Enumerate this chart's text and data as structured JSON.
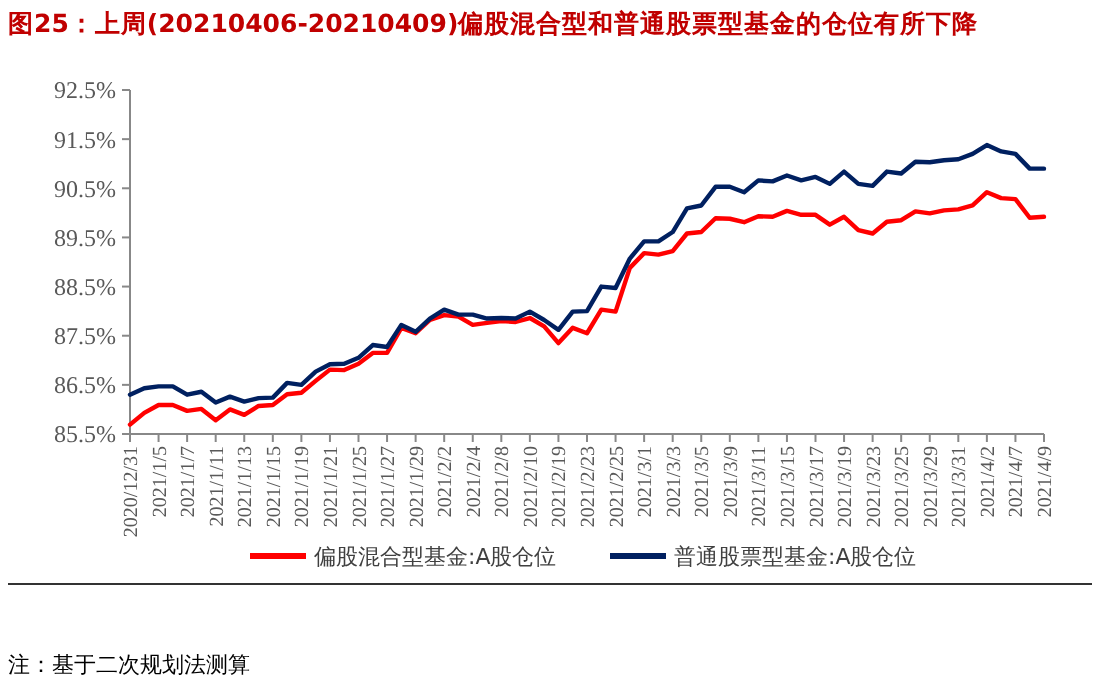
{
  "chart_data": {
    "type": "line",
    "title": "图25：上周(20210406-20210409)偏股混合型和普通股票型基金的仓位有所下降",
    "categories": [
      "2020/12/31",
      null,
      "2021/1/5",
      null,
      "2021/1/7",
      null,
      "2021/1/11",
      null,
      "2021/1/13",
      null,
      "2021/1/15",
      null,
      "2021/1/19",
      null,
      "2021/1/21",
      null,
      "2021/1/25",
      null,
      "2021/1/27",
      null,
      "2021/1/29",
      null,
      "2021/2/2",
      null,
      "2021/2/4",
      null,
      "2021/2/8",
      null,
      "2021/2/10",
      null,
      "2021/2/19",
      null,
      "2021/2/23",
      null,
      "2021/2/25",
      null,
      "2021/3/1",
      null,
      "2021/3/3",
      null,
      "2021/3/5",
      null,
      "2021/3/9",
      null,
      "2021/3/11",
      null,
      "2021/3/15",
      null,
      "2021/3/17",
      null,
      "2021/3/19",
      null,
      "2021/3/23",
      null,
      "2021/3/25",
      null,
      "2021/3/29",
      null,
      "2021/3/31",
      null,
      "2021/4/2",
      null,
      "2021/4/7",
      null,
      "2021/4/9"
    ],
    "series": [
      {
        "name": "偏股混合型基金:A股仓位",
        "color": "#ff0000",
        "values": [
          85.69,
          85.93,
          86.09,
          86.09,
          85.97,
          86.01,
          85.78,
          86.0,
          85.89,
          86.07,
          86.09,
          86.31,
          86.34,
          86.58,
          86.81,
          86.8,
          86.93,
          87.15,
          87.15,
          87.66,
          87.55,
          87.82,
          87.92,
          87.89,
          87.72,
          87.76,
          87.8,
          87.78,
          87.86,
          87.69,
          87.35,
          87.66,
          87.55,
          88.03,
          87.99,
          88.88,
          89.18,
          89.15,
          89.22,
          89.58,
          89.61,
          89.89,
          89.88,
          89.81,
          89.93,
          89.92,
          90.04,
          89.96,
          89.96,
          89.76,
          89.92,
          89.65,
          89.58,
          89.82,
          89.85,
          90.03,
          89.99,
          90.05,
          90.07,
          90.15,
          90.42,
          90.3,
          90.28,
          89.9,
          89.92
        ]
      },
      {
        "name": "普通股票型基金:A股仓位",
        "color": "#002060",
        "values": [
          86.3,
          86.43,
          86.47,
          86.47,
          86.3,
          86.36,
          86.14,
          86.26,
          86.16,
          86.23,
          86.24,
          86.54,
          86.5,
          86.77,
          86.92,
          86.93,
          87.05,
          87.31,
          87.27,
          87.72,
          87.58,
          87.85,
          88.03,
          87.93,
          87.93,
          87.85,
          87.86,
          87.85,
          87.99,
          87.82,
          87.62,
          87.99,
          88.0,
          88.5,
          88.47,
          89.07,
          89.42,
          89.42,
          89.61,
          90.09,
          90.15,
          90.53,
          90.53,
          90.42,
          90.66,
          90.64,
          90.76,
          90.66,
          90.73,
          90.59,
          90.84,
          90.59,
          90.55,
          90.84,
          90.8,
          91.04,
          91.03,
          91.07,
          91.09,
          91.2,
          91.38,
          91.25,
          91.2,
          90.9,
          90.9
        ]
      }
    ],
    "ylim": [
      85.5,
      92.5
    ],
    "yticks": [
      {
        "value": 85.5,
        "label": "85.5%"
      },
      {
        "value": 86.5,
        "label": "86.5%"
      },
      {
        "value": 87.5,
        "label": "87.5%"
      },
      {
        "value": 88.5,
        "label": "88.5%"
      },
      {
        "value": 89.5,
        "label": "89.5%"
      },
      {
        "value": 90.5,
        "label": "90.5%"
      },
      {
        "value": 91.5,
        "label": "91.5%"
      },
      {
        "value": 92.5,
        "label": "92.5%"
      }
    ],
    "grid": false,
    "legend": "bottom",
    "marker": "none",
    "line_style": "solid",
    "annotations": [
      "注：基于二次规划法测算"
    ]
  }
}
